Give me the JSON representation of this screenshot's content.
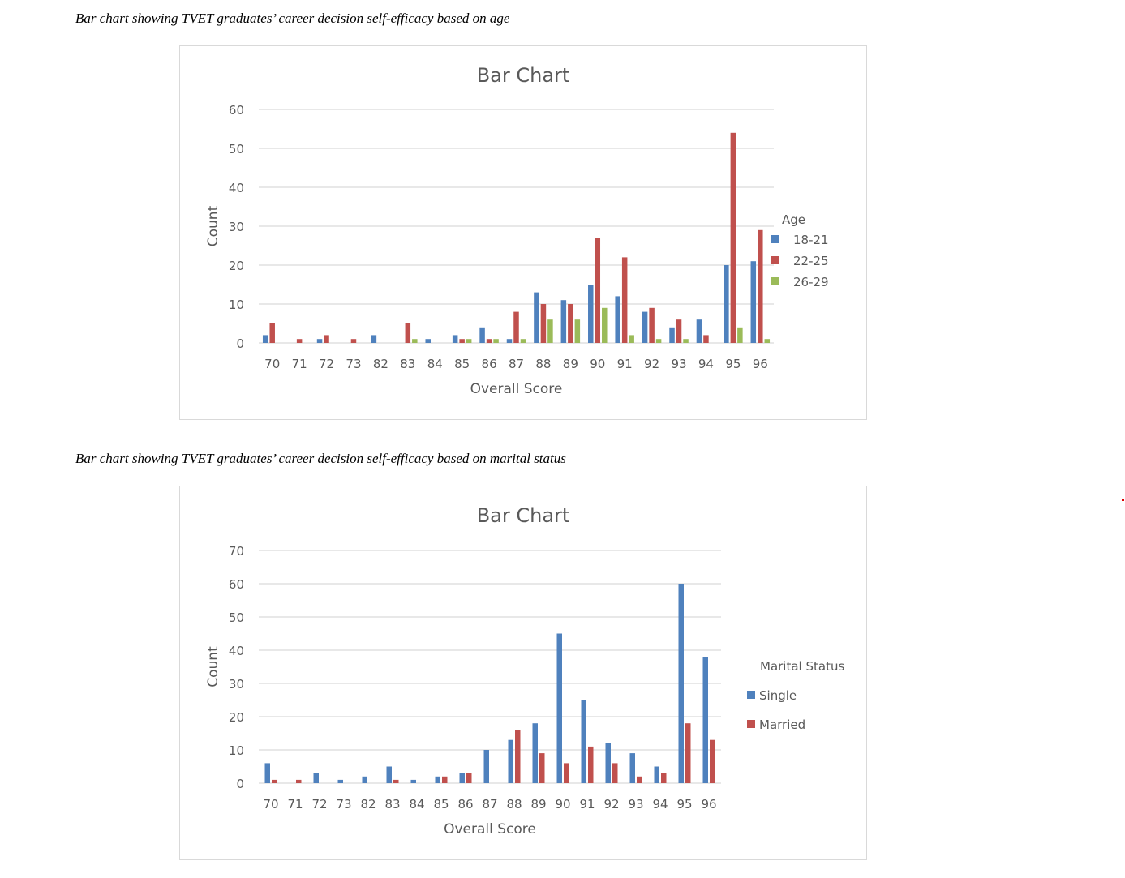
{
  "captions": {
    "age": "Bar chart showing TVET graduates’ career decision self-efficacy based on age",
    "marital": "Bar chart showing TVET graduates’ career decision self-efficacy based on marital status"
  },
  "chart_data": [
    {
      "type": "bar",
      "title": "Bar Chart",
      "xlabel": "Overall Score",
      "ylabel": "Count",
      "ylim": [
        0,
        60
      ],
      "yticks": [
        0,
        10,
        20,
        30,
        40,
        50,
        60
      ],
      "grid": true,
      "legend_title": "Age",
      "legend_position": "right",
      "categories": [
        "70",
        "71",
        "72",
        "73",
        "82",
        "83",
        "84",
        "85",
        "86",
        "87",
        "88",
        "89",
        "90",
        "91",
        "92",
        "93",
        "94",
        "95",
        "96"
      ],
      "series": [
        {
          "name": "18-21",
          "color": "#4f81bd",
          "values": [
            2,
            0,
            1,
            0,
            2,
            0,
            1,
            2,
            4,
            1,
            13,
            11,
            15,
            12,
            8,
            4,
            6,
            20,
            21
          ]
        },
        {
          "name": "22-25",
          "color": "#c0504d",
          "values": [
            5,
            1,
            2,
            1,
            0,
            5,
            0,
            1,
            1,
            8,
            10,
            10,
            27,
            22,
            9,
            6,
            2,
            54,
            29
          ]
        },
        {
          "name": "26-29",
          "color": "#9bbb59",
          "values": [
            0,
            0,
            0,
            0,
            0,
            1,
            0,
            1,
            1,
            1,
            6,
            6,
            9,
            2,
            1,
            1,
            0,
            4,
            1
          ]
        }
      ]
    },
    {
      "type": "bar",
      "title": "Bar Chart",
      "xlabel": "Overall Score",
      "ylabel": "Count",
      "ylim": [
        0,
        70
      ],
      "yticks": [
        0,
        10,
        20,
        30,
        40,
        50,
        60,
        70
      ],
      "grid": true,
      "legend_title": "Marital Status",
      "legend_position": "right",
      "categories": [
        "70",
        "71",
        "72",
        "73",
        "82",
        "83",
        "84",
        "85",
        "86",
        "87",
        "88",
        "89",
        "90",
        "91",
        "92",
        "93",
        "94",
        "95",
        "96"
      ],
      "series": [
        {
          "name": "Single",
          "color": "#4f81bd",
          "values": [
            6,
            0,
            3,
            1,
            2,
            5,
            1,
            2,
            3,
            10,
            13,
            18,
            45,
            25,
            12,
            9,
            5,
            60,
            38
          ]
        },
        {
          "name": "Married",
          "color": "#c0504d",
          "values": [
            1,
            1,
            0,
            0,
            0,
            1,
            0,
            2,
            3,
            0,
            16,
            9,
            6,
            11,
            6,
            2,
            3,
            18,
            13
          ]
        }
      ]
    }
  ]
}
